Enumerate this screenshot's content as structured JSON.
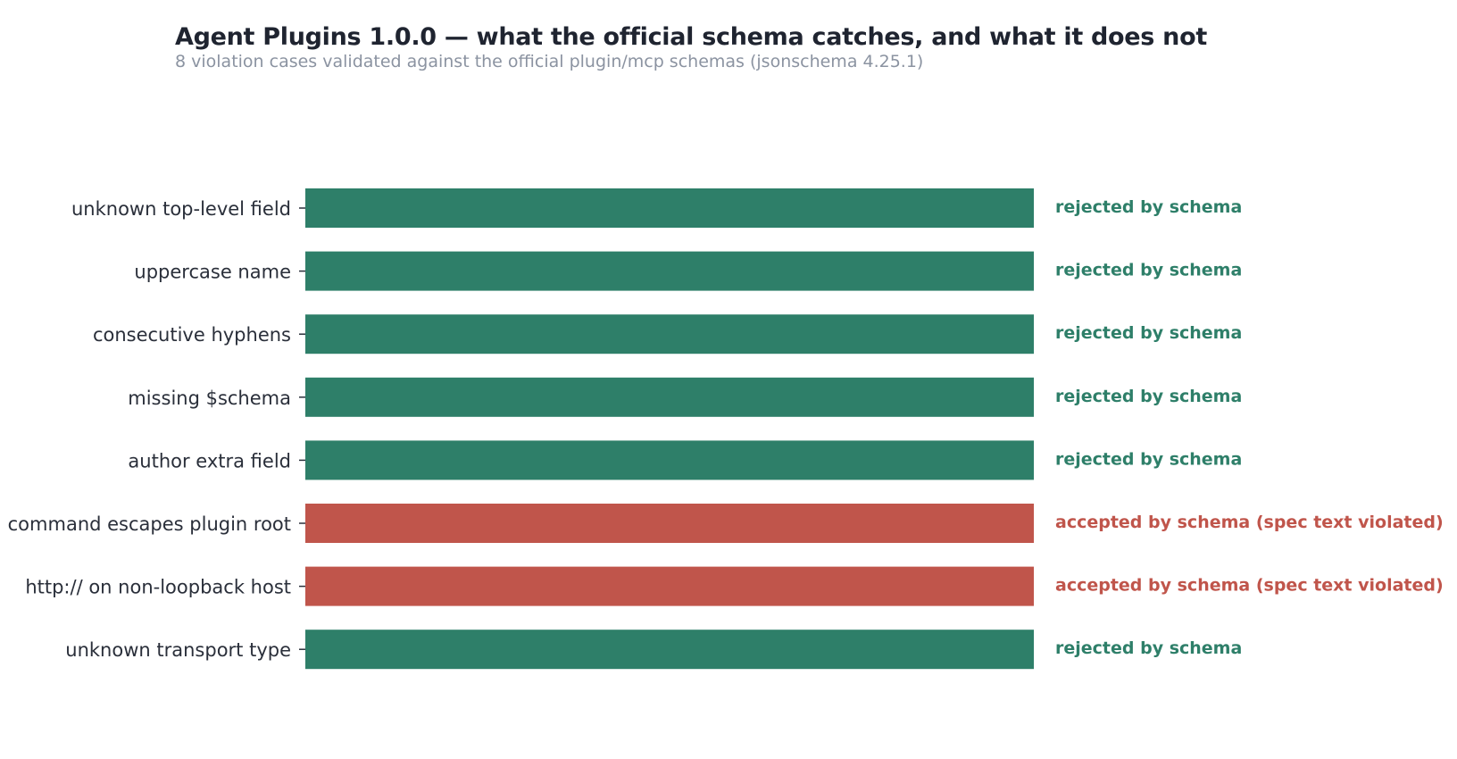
{
  "chart_data": {
    "type": "bar",
    "orientation": "horizontal",
    "title": "Agent Plugins 1.0.0 — what the official schema catches, and what it does not",
    "subtitle": "8 violation cases validated against the official plugin/mcp schemas (jsonschema 4.25.1)",
    "xlabel": "",
    "ylabel": "",
    "grid": false,
    "legend": "none",
    "categories": [
      "unknown top-level field",
      "uppercase name",
      "consecutive hyphens",
      "missing $schema",
      "author extra field",
      "command escapes plugin root",
      "http:// on non-loopback host",
      "unknown transport type"
    ],
    "values": [
      1,
      1,
      1,
      1,
      1,
      1,
      1,
      1
    ],
    "xlim": [
      0,
      1
    ],
    "outcomes": [
      "rejected",
      "rejected",
      "rejected",
      "rejected",
      "rejected",
      "accepted",
      "accepted",
      "rejected"
    ],
    "status_labels": {
      "rejected": "rejected by schema",
      "accepted": "accepted by schema (spec text violated)"
    },
    "colors": {
      "rejected": "#2e7f69",
      "accepted": "#c0554b"
    }
  }
}
